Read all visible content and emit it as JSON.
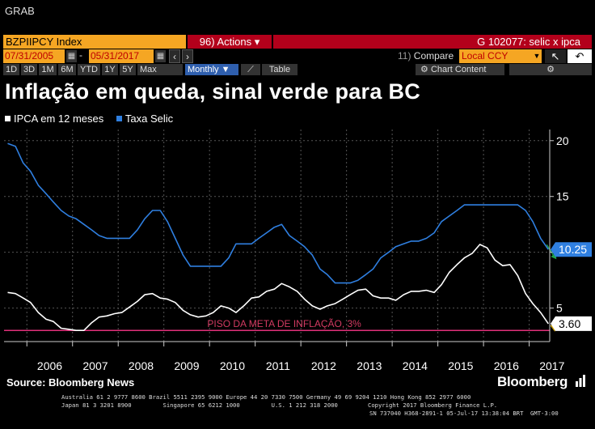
{
  "window_title": "GRAB",
  "toolbar": {
    "ticker": "BZPIIPCY Index",
    "actions_label": "96) Actions ▾",
    "chart_id": "G 102077: selic x ipca",
    "start_date": "07/31/2005",
    "end_date": "05/31/2017",
    "compare_prefix": "11)",
    "compare_label": "Compare",
    "currency": "Local CCY",
    "ranges": [
      "1D",
      "3D",
      "1M",
      "6M",
      "YTD",
      "1Y",
      "5Y",
      "Max"
    ],
    "frequency": "Monthly",
    "table_label": "Table",
    "chart_content_label": "Chart Content"
  },
  "headline": "Inflação em queda, sinal verde para BC",
  "colors": {
    "ipca": "#ffffff",
    "selic": "#2f7fe0",
    "floor_line": "#e0307a",
    "arrow": "#1fa34a",
    "arrow_gold": "#c8a000"
  },
  "chart_data": {
    "type": "line",
    "title": "Inflação em queda, sinal verde para BC",
    "xlabel": "",
    "ylabel": "",
    "x_tick_labels": [
      "2006",
      "2007",
      "2008",
      "2009",
      "2010",
      "2011",
      "2012",
      "2013",
      "2014",
      "2015",
      "2016",
      "2017"
    ],
    "y_tick_labels": [
      "5",
      "10",
      "15",
      "20"
    ],
    "y_ticks": [
      5,
      10,
      15,
      20
    ],
    "ylim": [
      2,
      21
    ],
    "xlim": [
      2005.5,
      2017.45
    ],
    "grid": true,
    "legend_position": "top-left",
    "series": [
      {
        "name": "IPCA em 12 meses",
        "x": [
          2005.58,
          2005.75,
          2005.92,
          2006.08,
          2006.25,
          2006.42,
          2006.58,
          2006.75,
          2006.92,
          2007.08,
          2007.25,
          2007.42,
          2007.58,
          2007.75,
          2007.92,
          2008.08,
          2008.25,
          2008.42,
          2008.58,
          2008.75,
          2008.92,
          2009.08,
          2009.25,
          2009.42,
          2009.58,
          2009.75,
          2009.92,
          2010.08,
          2010.25,
          2010.42,
          2010.58,
          2010.75,
          2010.92,
          2011.08,
          2011.25,
          2011.42,
          2011.58,
          2011.75,
          2011.92,
          2012.08,
          2012.25,
          2012.42,
          2012.58,
          2012.75,
          2012.92,
          2013.08,
          2013.25,
          2013.42,
          2013.58,
          2013.75,
          2013.92,
          2014.08,
          2014.25,
          2014.42,
          2014.58,
          2014.75,
          2014.92,
          2015.08,
          2015.25,
          2015.42,
          2015.58,
          2015.75,
          2015.92,
          2016.08,
          2016.25,
          2016.42,
          2016.58,
          2016.75,
          2016.92,
          2017.08,
          2017.25,
          2017.42
        ],
        "values": [
          6.4,
          6.3,
          5.9,
          5.5,
          4.6,
          4.0,
          3.8,
          3.2,
          3.1,
          3.0,
          3.0,
          3.7,
          4.2,
          4.3,
          4.5,
          4.6,
          5.1,
          5.6,
          6.2,
          6.3,
          5.9,
          5.8,
          5.5,
          4.8,
          4.4,
          4.2,
          4.3,
          4.6,
          5.2,
          5.0,
          4.6,
          5.2,
          5.9,
          6.0,
          6.5,
          6.7,
          7.2,
          6.9,
          6.5,
          5.8,
          5.2,
          4.9,
          5.2,
          5.4,
          5.8,
          6.2,
          6.6,
          6.7,
          6.1,
          5.9,
          5.9,
          5.7,
          6.2,
          6.5,
          6.5,
          6.6,
          6.4,
          7.1,
          8.2,
          8.9,
          9.5,
          9.9,
          10.7,
          10.4,
          9.3,
          8.8,
          8.9,
          7.9,
          6.3,
          5.4,
          4.6,
          3.6
        ]
      },
      {
        "name": "Taxa Selic",
        "x": [
          2005.58,
          2005.75,
          2005.92,
          2006.08,
          2006.25,
          2006.42,
          2006.58,
          2006.75,
          2006.92,
          2007.08,
          2007.25,
          2007.42,
          2007.58,
          2007.75,
          2007.92,
          2008.08,
          2008.25,
          2008.42,
          2008.58,
          2008.75,
          2008.92,
          2009.08,
          2009.25,
          2009.42,
          2009.58,
          2009.75,
          2009.92,
          2010.08,
          2010.25,
          2010.42,
          2010.58,
          2010.75,
          2010.92,
          2011.08,
          2011.25,
          2011.42,
          2011.58,
          2011.75,
          2011.92,
          2012.08,
          2012.25,
          2012.42,
          2012.58,
          2012.75,
          2012.92,
          2013.08,
          2013.25,
          2013.42,
          2013.58,
          2013.75,
          2013.92,
          2014.08,
          2014.25,
          2014.42,
          2014.58,
          2014.75,
          2014.92,
          2015.08,
          2015.25,
          2015.42,
          2015.58,
          2015.75,
          2015.92,
          2016.08,
          2016.25,
          2016.42,
          2016.58,
          2016.75,
          2016.92,
          2017.08,
          2017.25,
          2017.42
        ],
        "values": [
          19.75,
          19.5,
          18.0,
          17.25,
          16.0,
          15.25,
          14.5,
          13.75,
          13.25,
          13.0,
          12.5,
          12.0,
          11.5,
          11.25,
          11.25,
          11.25,
          11.25,
          12.0,
          13.0,
          13.75,
          13.75,
          12.75,
          11.25,
          9.75,
          8.75,
          8.75,
          8.75,
          8.75,
          8.75,
          9.5,
          10.75,
          10.75,
          10.75,
          11.25,
          11.75,
          12.25,
          12.5,
          11.5,
          11.0,
          10.5,
          9.75,
          8.5,
          8.0,
          7.25,
          7.25,
          7.25,
          7.5,
          8.0,
          8.5,
          9.5,
          10.0,
          10.5,
          10.75,
          11.0,
          11.0,
          11.25,
          11.75,
          12.75,
          13.25,
          13.75,
          14.25,
          14.25,
          14.25,
          14.25,
          14.25,
          14.25,
          14.25,
          14.25,
          13.75,
          12.75,
          11.25,
          10.25
        ]
      }
    ],
    "floor_line": {
      "value": 3.0,
      "label": "PISO DA META DE INFLAÇÃO, 3%"
    },
    "last_value_labels": {
      "selic": "10.25",
      "ipca": "3.60"
    }
  },
  "source": "Source: Bloomberg News",
  "brand": "Bloomberg",
  "footer": {
    "line1": "Australia 61 2 9777 8600 Brazil 5511 2395 9000 Europe 44 20 7330 7500 Germany 49 69 9204 1210 Hong Kong 852 2977 6000",
    "line2a": "Japan 81 3 3201 8900         Singapore 65 6212 1000         U.S. 1 212 318 2000",
    "line2b": "Copyright 2017 Bloomberg Finance L.P.",
    "line3": "SN 737040 H368-2891-1 05-Jul-17 13:38:04 BRT  GMT-3:00"
  }
}
